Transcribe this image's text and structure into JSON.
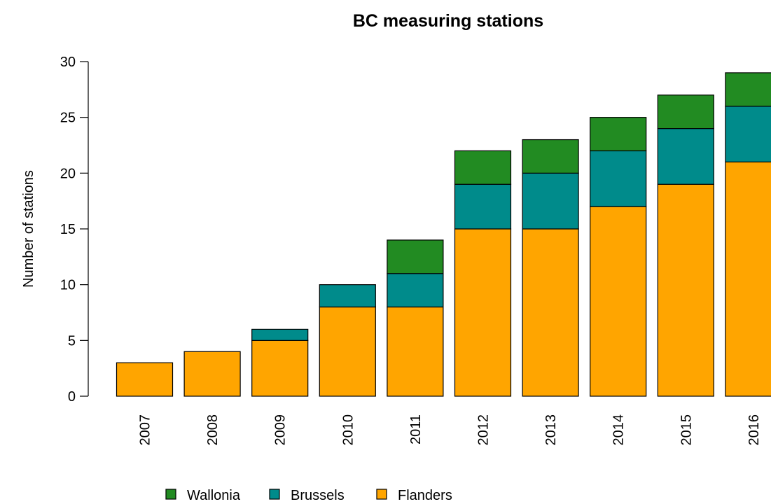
{
  "chart_data": {
    "type": "bar",
    "stacked": true,
    "title": "BC measuring stations",
    "xlabel": "",
    "ylabel": "Number of stations",
    "categories": [
      "2007",
      "2008",
      "2009",
      "2010",
      "2011",
      "2012",
      "2013",
      "2014",
      "2015",
      "2016"
    ],
    "series": [
      {
        "name": "Flanders",
        "color": "#FFA500",
        "values": [
          3,
          4,
          5,
          8,
          8,
          15,
          15,
          17,
          19,
          21
        ]
      },
      {
        "name": "Brussels",
        "color": "#008B8B",
        "values": [
          0,
          0,
          1,
          2,
          3,
          4,
          5,
          5,
          5,
          5
        ]
      },
      {
        "name": "Wallonia",
        "color": "#228B22",
        "values": [
          0,
          0,
          0,
          0,
          3,
          3,
          3,
          3,
          3,
          3
        ]
      }
    ],
    "ylim": [
      0,
      30
    ],
    "yticks": [
      "0",
      "5",
      "10",
      "15",
      "20",
      "25",
      "30"
    ],
    "grid": false,
    "legend": {
      "placement": "bottom",
      "order": [
        "Wallonia",
        "Brussels",
        "Flanders"
      ]
    }
  }
}
